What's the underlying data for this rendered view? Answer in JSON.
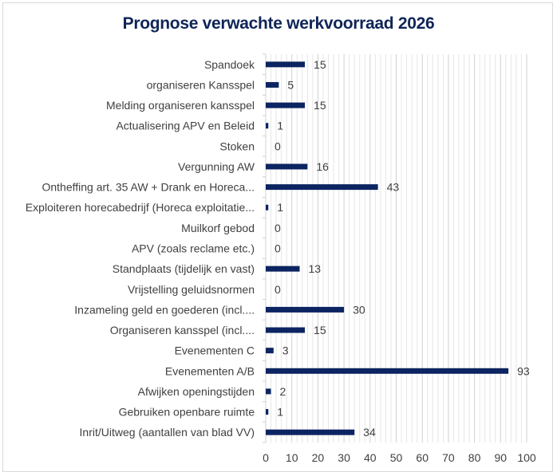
{
  "chart_data": {
    "type": "bar",
    "orientation": "horizontal",
    "title": "Prognose verwachte werkvoorraad 2026",
    "xlabel": "",
    "ylabel": "",
    "xlim": [
      0,
      100
    ],
    "x_ticks": [
      "0",
      "10",
      "20",
      "30",
      "40",
      "50",
      "60",
      "70",
      "80",
      "90",
      "100"
    ],
    "grid": true,
    "legend": "none",
    "bar_color": "#0c2461",
    "categories": [
      "Spandoek",
      "organiseren Kansspel",
      "Melding organiseren kansspel",
      "Actualisering APV en Beleid",
      "Stoken",
      "Vergunning AW",
      "Ontheffing art. 35 AW + Drank en Horeca...",
      "Exploiteren horecabedrijf (Horeca exploitatie...",
      "Muilkorf gebod",
      "APV (zoals reclame etc.)",
      "Standplaats (tijdelijk en vast)",
      "Vrijstelling geluidsnormen",
      "Inzameling geld en goederen (incl....",
      "Organiseren kansspel (incl....",
      "Evenementen C",
      "Evenementen A/B",
      "Afwijken openingstijden",
      "Gebruiken openbare ruimte",
      "Inrit/Uitweg (aantallen van blad VV)"
    ],
    "values": [
      15,
      5,
      15,
      1,
      0,
      16,
      43,
      1,
      0,
      0,
      13,
      0,
      30,
      15,
      3,
      93,
      2,
      1,
      34
    ],
    "data_labels": [
      "15",
      "5",
      "15",
      "1",
      "0",
      "16",
      "43",
      "1",
      "0",
      "0",
      "13",
      "0",
      "30",
      "15",
      "3",
      "93",
      "2",
      "1",
      "34"
    ]
  }
}
